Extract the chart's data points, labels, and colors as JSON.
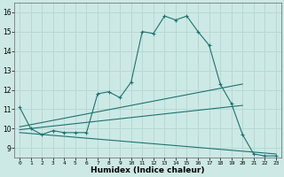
{
  "xlabel": "Humidex (Indice chaleur)",
  "background_color": "#cce9e5",
  "grid_color": "#b8d8d4",
  "line_color": "#1e7272",
  "xlim": [
    -0.5,
    23.5
  ],
  "ylim": [
    8.5,
    16.5
  ],
  "yticks": [
    9,
    10,
    11,
    12,
    13,
    14,
    15,
    16
  ],
  "xticks": [
    0,
    1,
    2,
    3,
    4,
    5,
    6,
    7,
    8,
    9,
    10,
    11,
    12,
    13,
    14,
    15,
    16,
    17,
    18,
    19,
    20,
    21,
    22,
    23
  ],
  "series1_x": [
    0,
    1,
    2,
    3,
    4,
    5,
    6,
    7,
    8,
    9,
    10,
    11,
    12,
    13,
    14,
    15,
    16,
    17,
    18,
    19,
    20,
    21,
    22,
    23
  ],
  "series1_y": [
    11.1,
    10.0,
    9.7,
    9.9,
    9.8,
    9.8,
    9.8,
    11.8,
    11.9,
    11.6,
    12.4,
    15.0,
    14.9,
    15.8,
    15.6,
    15.8,
    15.0,
    14.3,
    12.3,
    11.3,
    9.7,
    8.7,
    8.6,
    8.6
  ],
  "series2_x": [
    0,
    20
  ],
  "series2_y": [
    10.1,
    12.3
  ],
  "series3_x": [
    0,
    20
  ],
  "series3_y": [
    9.95,
    11.2
  ],
  "series4_x": [
    0,
    23
  ],
  "series4_y": [
    9.8,
    8.7
  ]
}
